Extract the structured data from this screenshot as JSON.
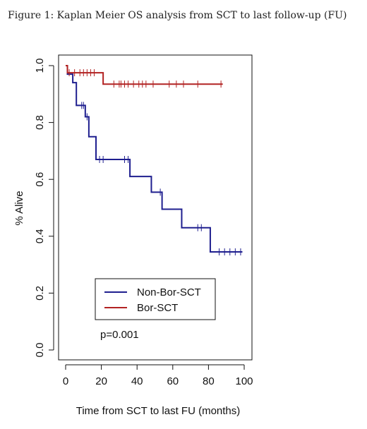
{
  "figure_title": "Figure 1: Kaplan Meier OS analysis from SCT to last follow-up (FU)",
  "chart_data": {
    "type": "line",
    "xlabel": "Time from SCT to last FU (months)",
    "ylabel": "% Alive",
    "xlim": [
      0,
      100
    ],
    "ylim": [
      0,
      1
    ],
    "x_ticks": [
      0,
      20,
      40,
      60,
      80,
      100
    ],
    "y_ticks": [
      0.0,
      0.2,
      0.4,
      0.6,
      0.8,
      1.0
    ],
    "x_tick_labels": [
      "0",
      "20",
      "40",
      "60",
      "80",
      "100"
    ],
    "y_tick_labels": [
      "0.0",
      "0.2",
      "0.4",
      "0.6",
      "0.8",
      "1.0"
    ],
    "legend_position": "bottom-left",
    "grid": false,
    "annotation": "p=0.001",
    "series": [
      {
        "name": "Non-Bor-SCT",
        "color": "#1f1f8f",
        "steps": [
          [
            0,
            1.0
          ],
          [
            1,
            0.97
          ],
          [
            4,
            0.94
          ],
          [
            6,
            0.86
          ],
          [
            11,
            0.82
          ],
          [
            13,
            0.75
          ],
          [
            17,
            0.67
          ],
          [
            36,
            0.61
          ],
          [
            48,
            0.555
          ],
          [
            54,
            0.495
          ],
          [
            65,
            0.43
          ],
          [
            81,
            0.345
          ],
          [
            99,
            0.345
          ]
        ],
        "censored": [
          [
            9,
            0.86
          ],
          [
            10,
            0.86
          ],
          [
            12,
            0.82
          ],
          [
            19,
            0.67
          ],
          [
            21,
            0.67
          ],
          [
            33,
            0.67
          ],
          [
            35,
            0.67
          ],
          [
            53,
            0.555
          ],
          [
            74,
            0.43
          ],
          [
            76,
            0.43
          ],
          [
            86,
            0.345
          ],
          [
            89,
            0.345
          ],
          [
            92,
            0.345
          ],
          [
            95,
            0.345
          ],
          [
            98,
            0.345
          ]
        ]
      },
      {
        "name": "Bor-SCT",
        "color": "#b22222",
        "steps": [
          [
            0,
            1.0
          ],
          [
            1,
            0.975
          ],
          [
            21,
            0.935
          ],
          [
            88,
            0.935
          ]
        ],
        "censored": [
          [
            2,
            0.975
          ],
          [
            5,
            0.975
          ],
          [
            8,
            0.975
          ],
          [
            10,
            0.975
          ],
          [
            12,
            0.975
          ],
          [
            14,
            0.975
          ],
          [
            16,
            0.975
          ],
          [
            27,
            0.935
          ],
          [
            30,
            0.935
          ],
          [
            31,
            0.935
          ],
          [
            33,
            0.935
          ],
          [
            35,
            0.935
          ],
          [
            38,
            0.935
          ],
          [
            41,
            0.935
          ],
          [
            43,
            0.935
          ],
          [
            45,
            0.935
          ],
          [
            49,
            0.935
          ],
          [
            58,
            0.935
          ],
          [
            62,
            0.935
          ],
          [
            66,
            0.935
          ],
          [
            74,
            0.935
          ],
          [
            87,
            0.935
          ]
        ]
      }
    ]
  }
}
